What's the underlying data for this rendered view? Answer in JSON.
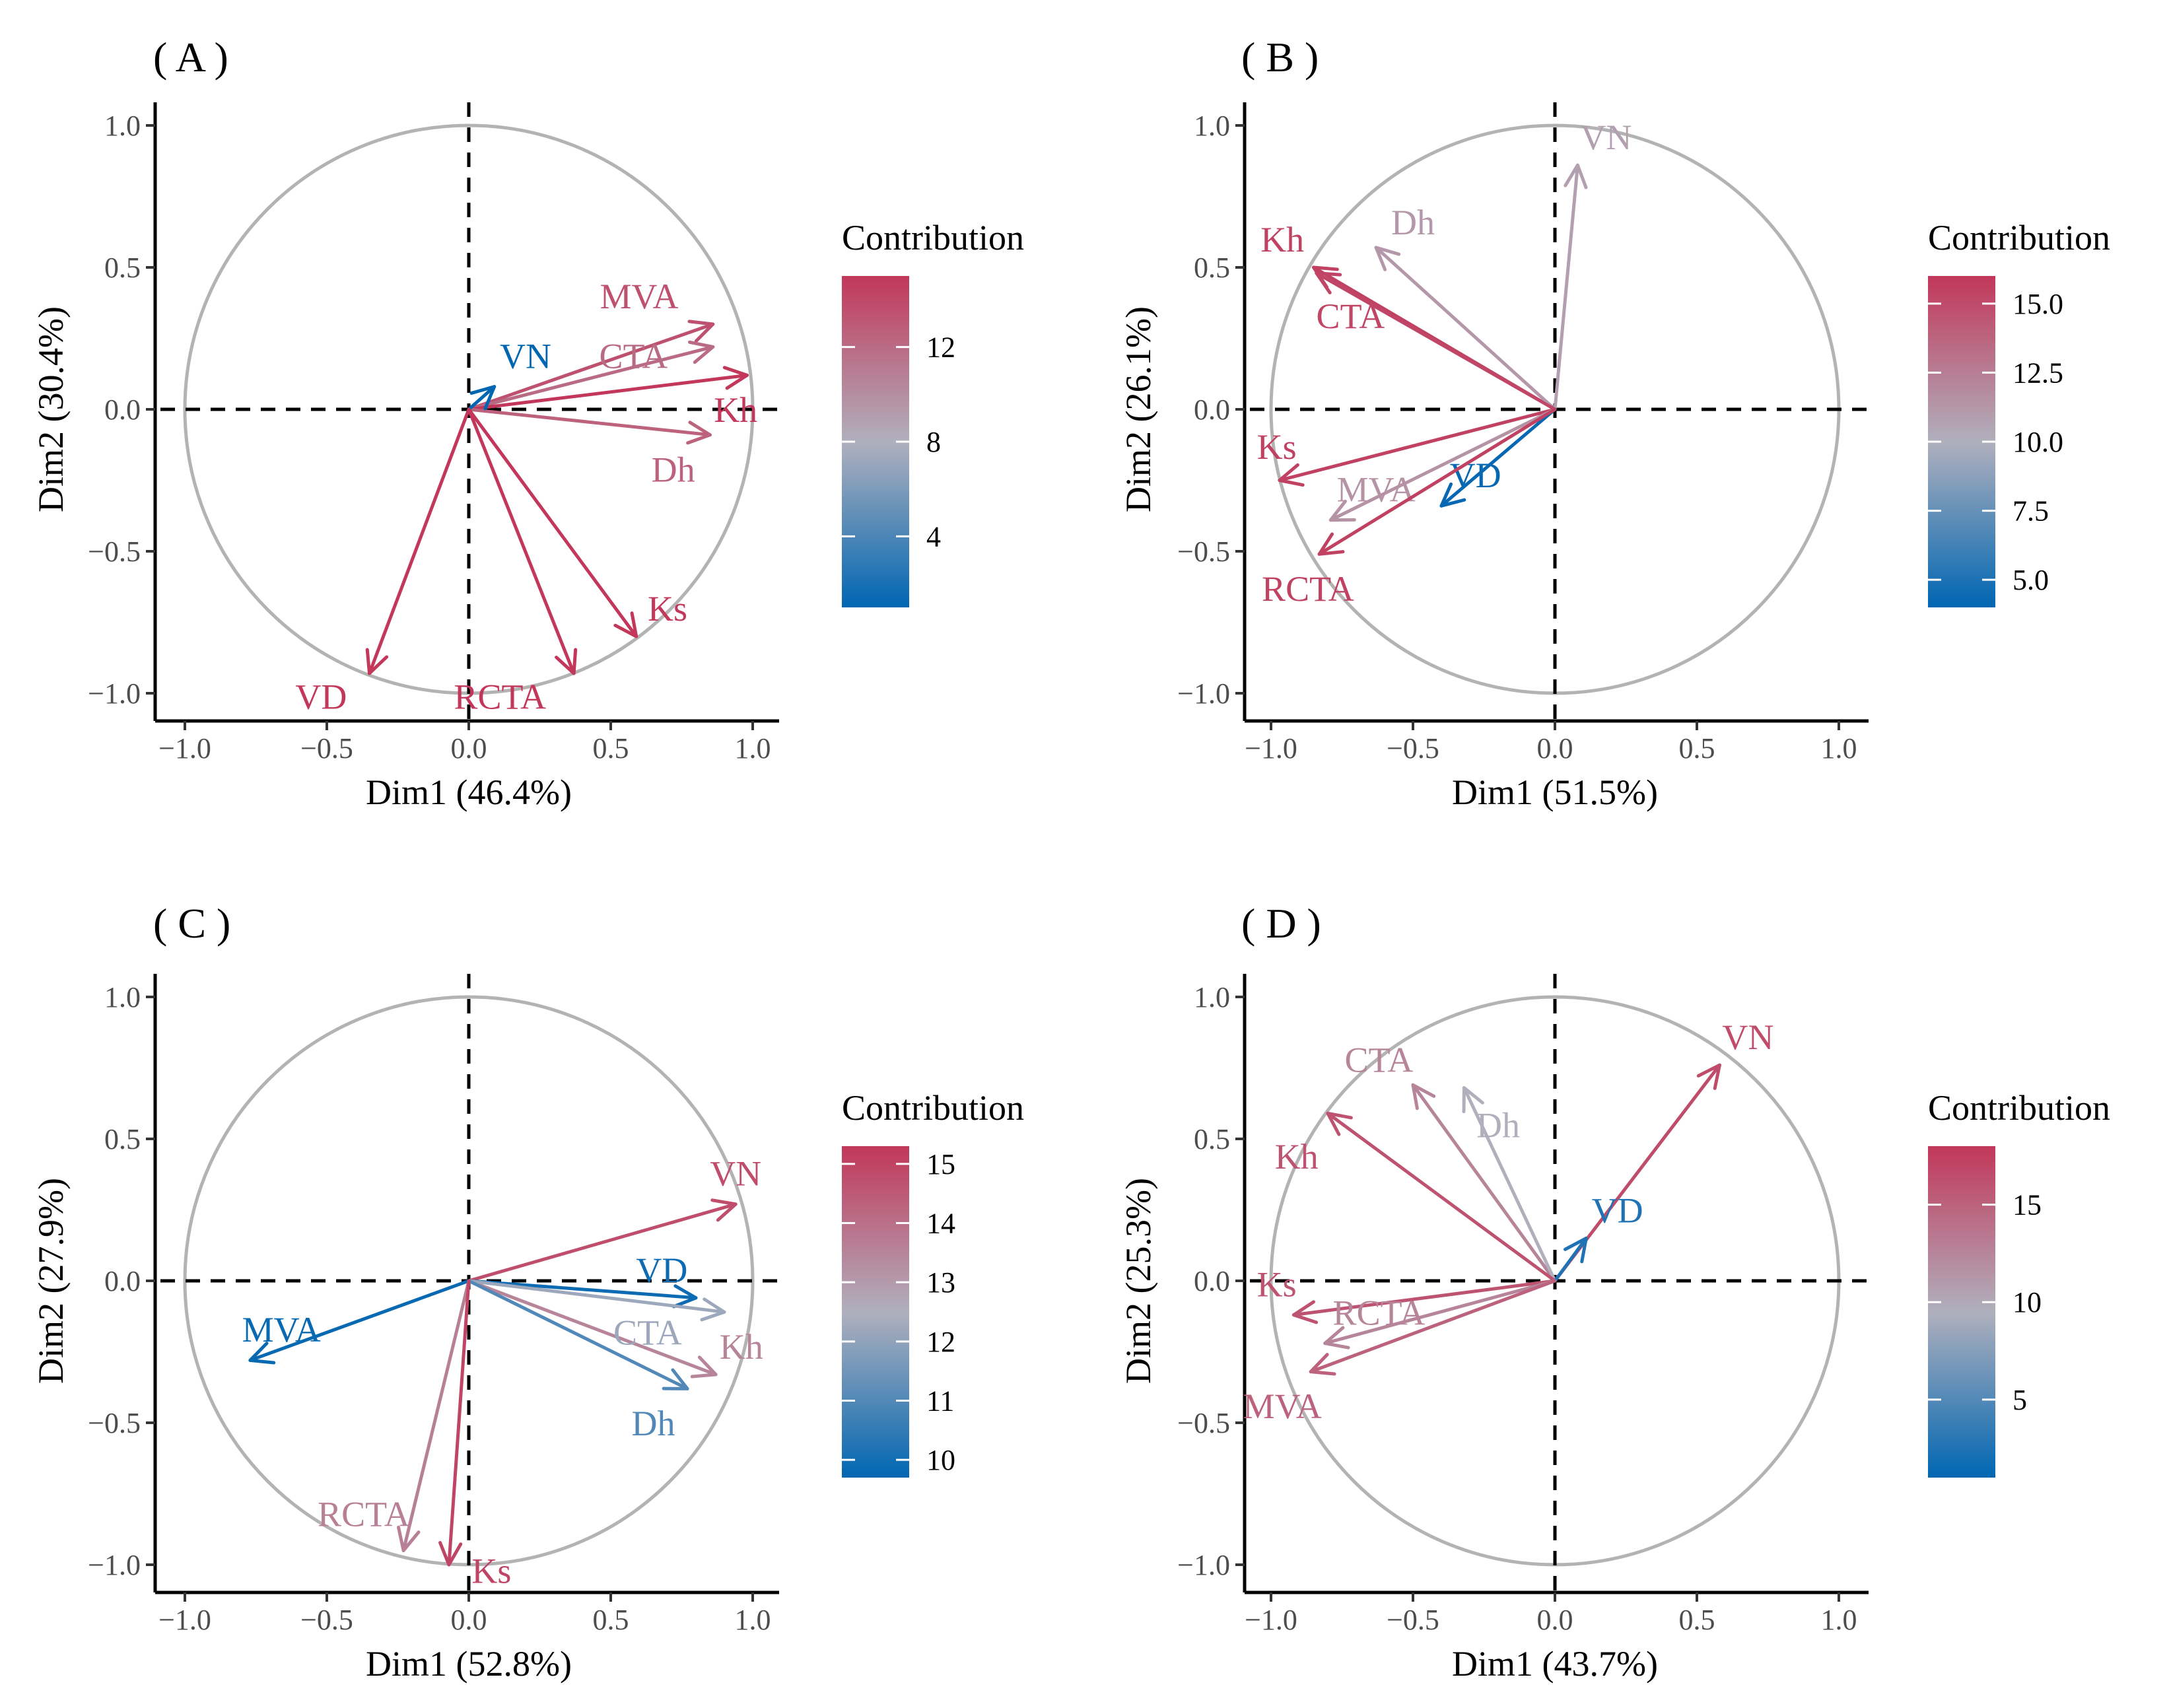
{
  "colors": {
    "low": "#0066b2",
    "mid": "#b0b0bd",
    "high": "#c2375a",
    "circle": "#b3b3b3",
    "refline": "#000000"
  },
  "chart_data": [
    {
      "type": "pca-variable-correlation-circle",
      "panel_label": "( A )",
      "xlabel": "Dim1 (46.4%)",
      "ylabel": "Dim2 (30.4%)",
      "xlim": [
        -1.1,
        1.1
      ],
      "ylim": [
        -1.1,
        1.1
      ],
      "x_ticks": [
        "−1.0",
        "−0.5",
        "0.0",
        "0.5",
        "1.0"
      ],
      "y_ticks": [
        "−1.0",
        "−0.5",
        "0.0",
        "0.5",
        "1.0"
      ],
      "legend": {
        "title": "Contribution",
        "range": [
          1,
          15
        ],
        "ticks": [
          {
            "value": 4,
            "label": "4"
          },
          {
            "value": 8,
            "label": "8"
          },
          {
            "value": 12,
            "label": "12"
          }
        ]
      },
      "variables": [
        {
          "name": "MVA",
          "x": 0.86,
          "y": 0.3,
          "contrib": 13.5,
          "label_x": 0.6,
          "label_y": 0.4
        },
        {
          "name": "CTA",
          "x": 0.86,
          "y": 0.22,
          "contrib": 12.0,
          "label_x": 0.58,
          "label_y": 0.19
        },
        {
          "name": "Kh",
          "x": 0.98,
          "y": 0.12,
          "contrib": 15.0,
          "label_x": 0.94,
          "label_y": 0.0
        },
        {
          "name": "Dh",
          "x": 0.85,
          "y": -0.09,
          "contrib": 12.5,
          "label_x": 0.72,
          "label_y": -0.21
        },
        {
          "name": "VN",
          "x": 0.09,
          "y": 0.08,
          "contrib": 1.0,
          "label_x": 0.2,
          "label_y": 0.19
        },
        {
          "name": "Ks",
          "x": 0.59,
          "y": -0.8,
          "contrib": 15.0,
          "label_x": 0.7,
          "label_y": -0.7
        },
        {
          "name": "RCTA",
          "x": 0.37,
          "y": -0.93,
          "contrib": 15.0,
          "label_x": 0.11,
          "label_y": -1.01
        },
        {
          "name": "VD",
          "x": -0.35,
          "y": -0.93,
          "contrib": 15.0,
          "label_x": -0.52,
          "label_y": -1.01
        }
      ]
    },
    {
      "type": "pca-variable-correlation-circle",
      "panel_label": "( B )",
      "xlabel": "Dim1 (51.5%)",
      "ylabel": "Dim2 (26.1%)",
      "xlim": [
        -1.1,
        1.1
      ],
      "ylim": [
        -1.1,
        1.1
      ],
      "x_ticks": [
        "−1.0",
        "−0.5",
        "0.0",
        "0.5",
        "1.0"
      ],
      "y_ticks": [
        "−1.0",
        "−0.5",
        "0.0",
        "0.5",
        "1.0"
      ],
      "legend": {
        "title": "Contribution",
        "range": [
          4,
          16
        ],
        "ticks": [
          {
            "value": 5.0,
            "label": "5.0"
          },
          {
            "value": 7.5,
            "label": "7.5"
          },
          {
            "value": 10.0,
            "label": "10.0"
          },
          {
            "value": 12.5,
            "label": "12.5"
          },
          {
            "value": 15.0,
            "label": "15.0"
          }
        ]
      },
      "variables": [
        {
          "name": "VN",
          "x": 0.08,
          "y": 0.86,
          "contrib": 10.8,
          "label_x": 0.18,
          "label_y": 0.96
        },
        {
          "name": "Kh",
          "x": -0.85,
          "y": 0.5,
          "contrib": 15.5,
          "label_x": -0.96,
          "label_y": 0.6
        },
        {
          "name": "Dh",
          "x": -0.63,
          "y": 0.57,
          "contrib": 11.2,
          "label_x": -0.5,
          "label_y": 0.66
        },
        {
          "name": "CTA",
          "x": -0.84,
          "y": 0.48,
          "contrib": 15.3,
          "label_x": -0.72,
          "label_y": 0.33
        },
        {
          "name": "Ks",
          "x": -0.97,
          "y": -0.25,
          "contrib": 15.5,
          "label_x": -0.98,
          "label_y": -0.13
        },
        {
          "name": "MVA",
          "x": -0.79,
          "y": -0.39,
          "contrib": 11.5,
          "label_x": -0.63,
          "label_y": -0.28
        },
        {
          "name": "VD",
          "x": -0.4,
          "y": -0.34,
          "contrib": 4.2,
          "label_x": -0.28,
          "label_y": -0.23
        },
        {
          "name": "RCTA",
          "x": -0.83,
          "y": -0.51,
          "contrib": 15.5,
          "label_x": -0.87,
          "label_y": -0.63
        }
      ]
    },
    {
      "type": "pca-variable-correlation-circle",
      "panel_label": "( C )",
      "xlabel": "Dim1 (52.8%)",
      "ylabel": "Dim2 (27.9%)",
      "xlim": [
        -1.1,
        1.1
      ],
      "ylim": [
        -1.1,
        1.1
      ],
      "x_ticks": [
        "−1.0",
        "−0.5",
        "0.0",
        "0.5",
        "1.0"
      ],
      "y_ticks": [
        "−1.0",
        "−0.5",
        "0.0",
        "0.5",
        "1.0"
      ],
      "legend": {
        "title": "Contribution",
        "range": [
          9.7,
          15.3
        ],
        "ticks": [
          {
            "value": 10,
            "label": "10"
          },
          {
            "value": 11,
            "label": "11"
          },
          {
            "value": 12,
            "label": "12"
          },
          {
            "value": 13,
            "label": "13"
          },
          {
            "value": 14,
            "label": "14"
          },
          {
            "value": 15,
            "label": "15"
          }
        ]
      },
      "variables": [
        {
          "name": "VN",
          "x": 0.94,
          "y": 0.27,
          "contrib": 14.8,
          "label_x": 0.94,
          "label_y": 0.38
        },
        {
          "name": "VD",
          "x": 0.8,
          "y": -0.06,
          "contrib": 9.9,
          "label_x": 0.68,
          "label_y": 0.04
        },
        {
          "name": "Kh",
          "x": 0.87,
          "y": -0.33,
          "contrib": 13.5,
          "label_x": 0.96,
          "label_y": -0.23
        },
        {
          "name": "CTA",
          "x": 0.9,
          "y": -0.11,
          "contrib": 12.2,
          "label_x": 0.63,
          "label_y": -0.18
        },
        {
          "name": "Dh",
          "x": 0.77,
          "y": -0.38,
          "contrib": 11.0,
          "label_x": 0.65,
          "label_y": -0.5
        },
        {
          "name": "MVA",
          "x": -0.77,
          "y": -0.28,
          "contrib": 9.8,
          "label_x": -0.66,
          "label_y": -0.17
        },
        {
          "name": "RCTA",
          "x": -0.23,
          "y": -0.95,
          "contrib": 13.6,
          "label_x": -0.37,
          "label_y": -0.82
        },
        {
          "name": "Ks",
          "x": -0.07,
          "y": -1.0,
          "contrib": 15.0,
          "label_x": 0.08,
          "label_y": -1.02
        }
      ]
    },
    {
      "type": "pca-variable-correlation-circle",
      "panel_label": "( D )",
      "xlabel": "Dim1 (43.7%)",
      "ylabel": "Dim2 (25.3%)",
      "xlim": [
        -1.1,
        1.1
      ],
      "ylim": [
        -1.1,
        1.1
      ],
      "x_ticks": [
        "−1.0",
        "−0.5",
        "0.0",
        "0.5",
        "1.0"
      ],
      "y_ticks": [
        "−1.0",
        "−0.5",
        "0.0",
        "0.5",
        "1.0"
      ],
      "legend": {
        "title": "Contribution",
        "range": [
          1,
          18
        ],
        "ticks": [
          {
            "value": 5,
            "label": "5"
          },
          {
            "value": 10,
            "label": "10"
          },
          {
            "value": 15,
            "label": "15"
          }
        ]
      },
      "variables": [
        {
          "name": "VN",
          "x": 0.58,
          "y": 0.76,
          "contrib": 16.5,
          "label_x": 0.68,
          "label_y": 0.86
        },
        {
          "name": "CTA",
          "x": -0.5,
          "y": 0.69,
          "contrib": 12.5,
          "label_x": -0.62,
          "label_y": 0.78
        },
        {
          "name": "Dh",
          "x": -0.32,
          "y": 0.68,
          "contrib": 9.5,
          "label_x": -0.2,
          "label_y": 0.55
        },
        {
          "name": "Kh",
          "x": -0.8,
          "y": 0.59,
          "contrib": 16.0,
          "label_x": -0.91,
          "label_y": 0.44
        },
        {
          "name": "VD",
          "x": 0.11,
          "y": 0.15,
          "contrib": 2.5,
          "label_x": 0.22,
          "label_y": 0.25
        },
        {
          "name": "Ks",
          "x": -0.92,
          "y": -0.12,
          "contrib": 16.0,
          "label_x": -0.98,
          "label_y": -0.01
        },
        {
          "name": "RCTA",
          "x": -0.81,
          "y": -0.22,
          "contrib": 12.5,
          "label_x": -0.62,
          "label_y": -0.11
        },
        {
          "name": "MVA",
          "x": -0.86,
          "y": -0.32,
          "contrib": 15.0,
          "label_x": -0.96,
          "label_y": -0.44
        }
      ]
    }
  ]
}
